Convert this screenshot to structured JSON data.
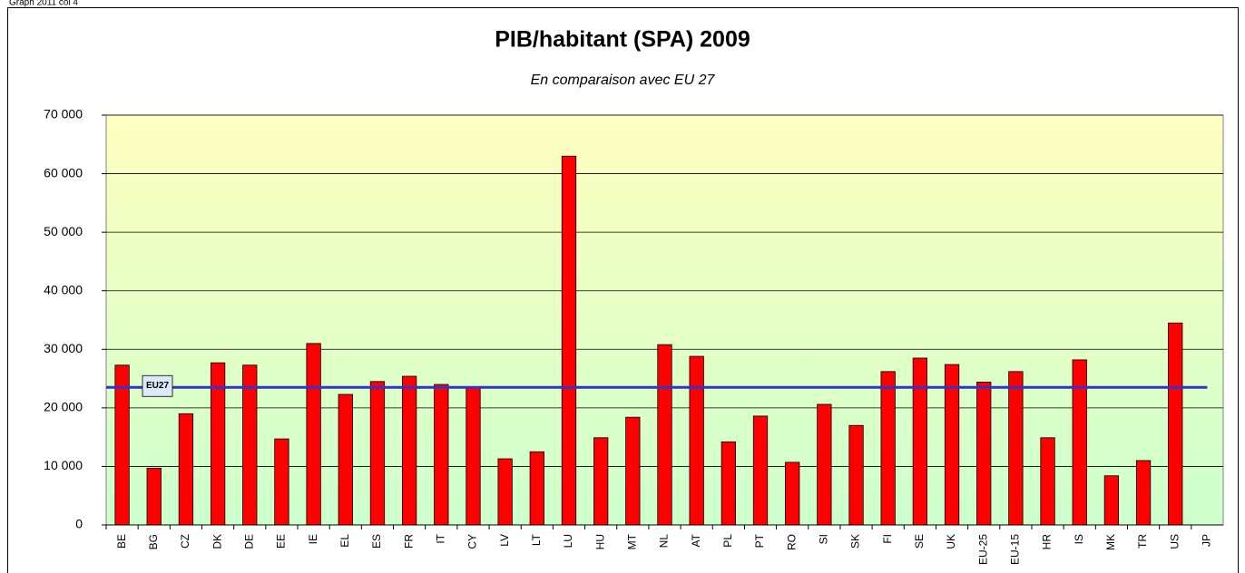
{
  "header": "Graph 2011 col 4",
  "chart_data": {
    "type": "bar",
    "title": "PIB/habitant (SPA) 2009",
    "subtitle": "En comparaison avec EU 27",
    "categories": [
      "BE",
      "BG",
      "CZ",
      "DK",
      "DE",
      "EE",
      "IE",
      "EL",
      "ES",
      "FR",
      "IT",
      "CY",
      "LV",
      "LT",
      "LU",
      "HU",
      "MT",
      "NL",
      "AT",
      "PL",
      "PT",
      "RO",
      "SI",
      "SK",
      "FI",
      "SE",
      "UK",
      "EU-25",
      "EU-15",
      "HR",
      "IS",
      "MK",
      "TR",
      "US",
      "JP"
    ],
    "values": [
      27300,
      9700,
      19000,
      27700,
      27300,
      14700,
      31000,
      22300,
      24500,
      25400,
      24000,
      23400,
      11300,
      12500,
      63000,
      14900,
      18400,
      30800,
      28800,
      14200,
      18600,
      10700,
      20600,
      17000,
      26200,
      28500,
      27400,
      24400,
      26200,
      14900,
      28200,
      8400,
      11000,
      34500,
      null
    ],
    "color": "#ff0000",
    "reference": {
      "label": "EU27",
      "value": 23500,
      "color": "#3333cc"
    },
    "ylim": [
      0,
      70000
    ],
    "yticks": [
      0,
      {
        "value": 10000,
        "label": "10 000"
      },
      {
        "value": 20000,
        "label": "20 000"
      },
      {
        "value": 30000,
        "label": "30 000"
      },
      {
        "value": 40000,
        "label": "40 000"
      },
      {
        "value": 50000,
        "label": "50 000"
      },
      {
        "value": 60000,
        "label": "60 000"
      },
      {
        "value": 70000,
        "label": "70 000"
      }
    ],
    "grid": true
  }
}
